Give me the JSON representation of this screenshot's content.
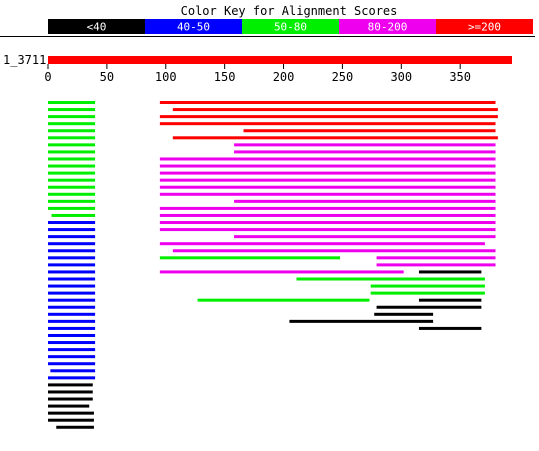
{
  "chart_data": {
    "type": "alignment-overview",
    "title": "Color Key for Alignment Scores",
    "legend": [
      {
        "label": "<40",
        "color": "#000000"
      },
      {
        "label": "40-50",
        "color": "#0000ff"
      },
      {
        "label": "50-80",
        "color": "#00ee00"
      },
      {
        "label": "80-200",
        "color": "#ee00ee"
      },
      {
        "label": ">=200",
        "color": "#ff0000"
      }
    ],
    "query": {
      "name": "1_3711",
      "length": 394,
      "color": "#ff0000"
    },
    "axis": {
      "min": 0,
      "max": 394,
      "ticks": [
        0,
        50,
        100,
        150,
        200,
        250,
        300,
        350
      ]
    },
    "hits": [
      [
        {
          "start": 1,
          "end": 40,
          "score": "50-80"
        },
        {
          "start": 96,
          "end": 380,
          "score": ">=200"
        }
      ],
      [
        {
          "start": 1,
          "end": 40,
          "score": "50-80"
        },
        {
          "start": 107,
          "end": 382,
          "score": ">=200"
        }
      ],
      [
        {
          "start": 1,
          "end": 40,
          "score": "50-80"
        },
        {
          "start": 96,
          "end": 382,
          "score": ">=200"
        }
      ],
      [
        {
          "start": 1,
          "end": 40,
          "score": "50-80"
        },
        {
          "start": 96,
          "end": 380,
          "score": ">=200"
        }
      ],
      [
        {
          "start": 1,
          "end": 40,
          "score": "50-80"
        },
        {
          "start": 167,
          "end": 380,
          "score": ">=200"
        }
      ],
      [
        {
          "start": 1,
          "end": 40,
          "score": "50-80"
        },
        {
          "start": 107,
          "end": 382,
          "score": ">=200"
        }
      ],
      [
        {
          "start": 1,
          "end": 40,
          "score": "50-80"
        },
        {
          "start": 159,
          "end": 380,
          "score": "80-200"
        }
      ],
      [
        {
          "start": 1,
          "end": 40,
          "score": "50-80"
        },
        {
          "start": 159,
          "end": 380,
          "score": "80-200"
        }
      ],
      [
        {
          "start": 1,
          "end": 40,
          "score": "50-80"
        },
        {
          "start": 96,
          "end": 380,
          "score": "80-200"
        }
      ],
      [
        {
          "start": 1,
          "end": 40,
          "score": "50-80"
        },
        {
          "start": 96,
          "end": 380,
          "score": "80-200"
        }
      ],
      [
        {
          "start": 1,
          "end": 40,
          "score": "50-80"
        },
        {
          "start": 96,
          "end": 380,
          "score": "80-200"
        }
      ],
      [
        {
          "start": 1,
          "end": 40,
          "score": "50-80"
        },
        {
          "start": 96,
          "end": 380,
          "score": "80-200"
        }
      ],
      [
        {
          "start": 1,
          "end": 40,
          "score": "50-80"
        },
        {
          "start": 96,
          "end": 380,
          "score": "80-200"
        }
      ],
      [
        {
          "start": 1,
          "end": 40,
          "score": "50-80"
        },
        {
          "start": 96,
          "end": 380,
          "score": "80-200"
        }
      ],
      [
        {
          "start": 1,
          "end": 40,
          "score": "50-80"
        },
        {
          "start": 159,
          "end": 380,
          "score": "80-200"
        }
      ],
      [
        {
          "start": 1,
          "end": 40,
          "score": "50-80"
        },
        {
          "start": 96,
          "end": 380,
          "score": "80-200"
        }
      ],
      [
        {
          "start": 4,
          "end": 40,
          "score": "50-80"
        },
        {
          "start": 96,
          "end": 380,
          "score": "80-200"
        }
      ],
      [
        {
          "start": 1,
          "end": 40,
          "score": "40-50"
        },
        {
          "start": 96,
          "end": 380,
          "score": "80-200"
        }
      ],
      [
        {
          "start": 1,
          "end": 40,
          "score": "40-50"
        },
        {
          "start": 96,
          "end": 380,
          "score": "80-200"
        }
      ],
      [
        {
          "start": 1,
          "end": 40,
          "score": "40-50"
        },
        {
          "start": 159,
          "end": 380,
          "score": "80-200"
        }
      ],
      [
        {
          "start": 1,
          "end": 40,
          "score": "40-50"
        },
        {
          "start": 96,
          "end": 371,
          "score": "80-200"
        }
      ],
      [
        {
          "start": 1,
          "end": 40,
          "score": "40-50"
        },
        {
          "start": 107,
          "end": 380,
          "score": "80-200"
        }
      ],
      [
        {
          "start": 1,
          "end": 40,
          "score": "40-50"
        },
        {
          "start": 96,
          "end": 248,
          "score": "50-80"
        },
        {
          "start": 280,
          "end": 380,
          "score": "80-200"
        }
      ],
      [
        {
          "start": 1,
          "end": 40,
          "score": "40-50"
        },
        {
          "start": 280,
          "end": 380,
          "score": "80-200"
        }
      ],
      [
        {
          "start": 1,
          "end": 40,
          "score": "40-50"
        },
        {
          "start": 96,
          "end": 302,
          "score": "80-200"
        },
        {
          "start": 316,
          "end": 368,
          "score": "<40"
        }
      ],
      [
        {
          "start": 1,
          "end": 40,
          "score": "40-50"
        },
        {
          "start": 212,
          "end": 371,
          "score": "50-80"
        }
      ],
      [
        {
          "start": 1,
          "end": 40,
          "score": "40-50"
        },
        {
          "start": 275,
          "end": 371,
          "score": "50-80"
        }
      ],
      [
        {
          "start": 1,
          "end": 40,
          "score": "40-50"
        },
        {
          "start": 275,
          "end": 371,
          "score": "50-80"
        }
      ],
      [
        {
          "start": 1,
          "end": 40,
          "score": "40-50"
        },
        {
          "start": 128,
          "end": 273,
          "score": "50-80"
        },
        {
          "start": 316,
          "end": 368,
          "score": "<40"
        }
      ],
      [
        {
          "start": 1,
          "end": 40,
          "score": "40-50"
        },
        {
          "start": 280,
          "end": 368,
          "score": "<40"
        }
      ],
      [
        {
          "start": 1,
          "end": 40,
          "score": "40-50"
        },
        {
          "start": 278,
          "end": 327,
          "score": "<40"
        }
      ],
      [
        {
          "start": 1,
          "end": 40,
          "score": "40-50"
        },
        {
          "start": 206,
          "end": 327,
          "score": "<40"
        }
      ],
      [
        {
          "start": 1,
          "end": 40,
          "score": "40-50"
        },
        {
          "start": 316,
          "end": 368,
          "score": "<40"
        }
      ],
      [
        {
          "start": 1,
          "end": 40,
          "score": "40-50"
        }
      ],
      [
        {
          "start": 1,
          "end": 40,
          "score": "40-50"
        }
      ],
      [
        {
          "start": 1,
          "end": 40,
          "score": "40-50"
        }
      ],
      [
        {
          "start": 1,
          "end": 40,
          "score": "40-50"
        }
      ],
      [
        {
          "start": 1,
          "end": 40,
          "score": "40-50"
        }
      ],
      [
        {
          "start": 3,
          "end": 40,
          "score": "40-50"
        }
      ],
      [
        {
          "start": 1,
          "end": 40,
          "score": "40-50"
        }
      ],
      [
        {
          "start": 1,
          "end": 38,
          "score": "<40"
        }
      ],
      [
        {
          "start": 1,
          "end": 38,
          "score": "<40"
        }
      ],
      [
        {
          "start": 1,
          "end": 38,
          "score": "<40"
        }
      ],
      [
        {
          "start": 1,
          "end": 35,
          "score": "<40"
        }
      ],
      [
        {
          "start": 1,
          "end": 39,
          "score": "<40"
        }
      ],
      [
        {
          "start": 1,
          "end": 39,
          "score": "<40"
        }
      ],
      [
        {
          "start": 8,
          "end": 39,
          "score": "<40"
        }
      ]
    ]
  }
}
